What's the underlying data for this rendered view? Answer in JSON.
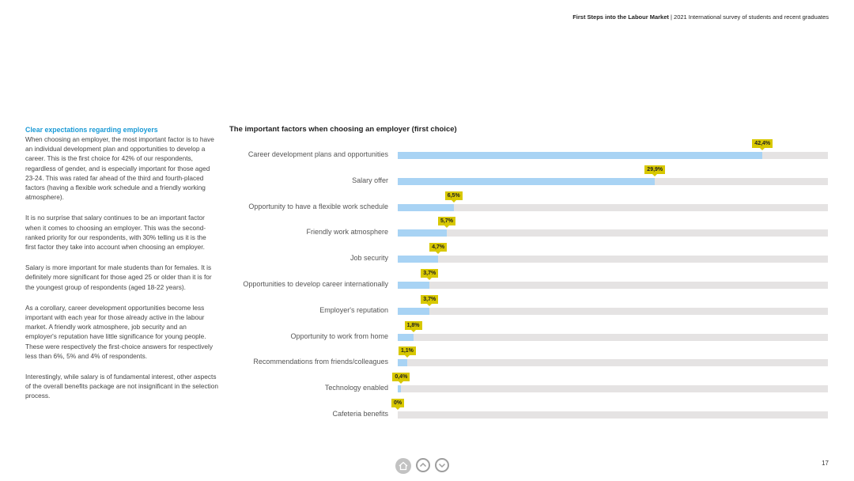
{
  "header": {
    "title_bold": "First Steps into the Labour Market",
    "separator": " | ",
    "subtitle": "2021 International survey of students and recent graduates"
  },
  "sidebar": {
    "heading": "Clear expectations regarding employers",
    "paragraphs": [
      "When choosing an employer, the most important factor is to have an individual development plan and opportunities to develop a career. This is the first choice for 42% of our respondents, regardless of gender, and is especially important for those aged 23-24. This was rated far ahead of the third and fourth-placed factors (having a flexible work schedule and a friendly working atmosphere).",
      "It is no surprise that salary continues to be an important factor when it comes to choosing an employer. This was the second-ranked priority for our respondents, with 30% telling us it is the first factor they take into account when choosing an employer.",
      "Salary is more important for male students than for females. It is definitely more significant for those aged 25 or older than it is for the youngest group of respondents (aged 18-22 years).",
      "As a corollary, career development opportunities become less important with each year for those already active in the labour market. A friendly work atmosphere, job security and an employer's reputation have little significance for young people. These were respectively the first-choice answers for respectively less than 6%, 5% and 4% of respondents.",
      "Interestingly, while salary is of fundamental interest, other aspects of the overall benefits package are not insignificant in the selection process."
    ]
  },
  "chart_data": {
    "type": "bar",
    "orientation": "horizontal",
    "title": "The important factors when choosing an employer (first choice)",
    "categories": [
      "Career development plans and opportunities",
      "Salary offer",
      "Opportunity to have a flexible work schedule",
      "Friendly work atmosphere",
      "Job security",
      "Opportunities to develop career internationally",
      "Employer's reputation",
      "Opportunity to work from home",
      "Recommendations from friends/colleagues",
      "Technology enabled",
      "Cafeteria benefits"
    ],
    "values": [
      42.4,
      29.9,
      6.5,
      5.7,
      4.7,
      3.7,
      3.7,
      1.8,
      1.1,
      0.4,
      0
    ],
    "labels": [
      "42,4%",
      "29,9%",
      "6,5%",
      "5,7%",
      "4,7%",
      "3,7%",
      "3,7%",
      "1,8%",
      "1,1%",
      "0,4%",
      "0%"
    ],
    "xlim": [
      0,
      50
    ],
    "xlabel": "",
    "ylabel": "",
    "bar_color": "#a8d3f4",
    "track_color": "#e5e3e3",
    "label_color": "#d8c800"
  },
  "nav": {
    "home_icon": "home-icon",
    "up_icon": "chevron-up-icon",
    "down_icon": "chevron-down-icon"
  },
  "page_number": "17"
}
